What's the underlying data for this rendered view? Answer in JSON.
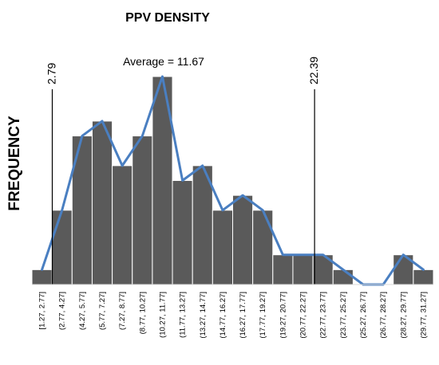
{
  "chart_data": {
    "type": "bar",
    "title": "PPV DENSITY",
    "xlabel": "",
    "ylabel": "FREQUENCY",
    "categories": [
      "[1.27, 2.77]",
      "(2.77, 4.27]",
      "(4.27, 5.77]",
      "(5.77, 7.27]",
      "(7.27, 8.77]",
      "(8.77, 10.27]",
      "(10.27, 11.77]",
      "(11.77, 13.27]",
      "(13.27, 14.77]",
      "(14.77, 16.27]",
      "(16.27, 17.77]",
      "(17.77, 19.27]",
      "(19.27, 20.77]",
      "(20.77, 22.27]",
      "(22.77, 23.77]",
      "(23.77, 25.27]",
      "(25.27, 26.77]",
      "(26.77, 28.27]",
      "(28.27, 29.77]",
      "(29.77, 31.27]"
    ],
    "series": [
      {
        "type": "bar",
        "values": [
          1,
          5,
          10,
          11,
          8,
          10,
          14,
          7,
          8,
          5,
          6,
          5,
          2,
          2,
          2,
          1,
          0,
          0,
          2,
          1
        ]
      },
      {
        "type": "line",
        "values": [
          1,
          5,
          10,
          11,
          8,
          10,
          14,
          7,
          8,
          5,
          6,
          5,
          2,
          2,
          2,
          1,
          0,
          0,
          2,
          1
        ]
      }
    ],
    "ylim": [
      0,
      14
    ],
    "grid": false,
    "legend": "none",
    "reference_lines": [
      {
        "x": 2.79,
        "label": "2.79"
      },
      {
        "x": 22.39,
        "label": "22.39"
      }
    ],
    "annotations": [
      {
        "text": "Average = 11.67"
      }
    ],
    "colors": {
      "bar_fill": "#5a5a5a",
      "bar_stroke": "#ffffff",
      "line": "#4a7fc1",
      "reference_line": "#000000",
      "axis": "#d9d9d9"
    }
  }
}
